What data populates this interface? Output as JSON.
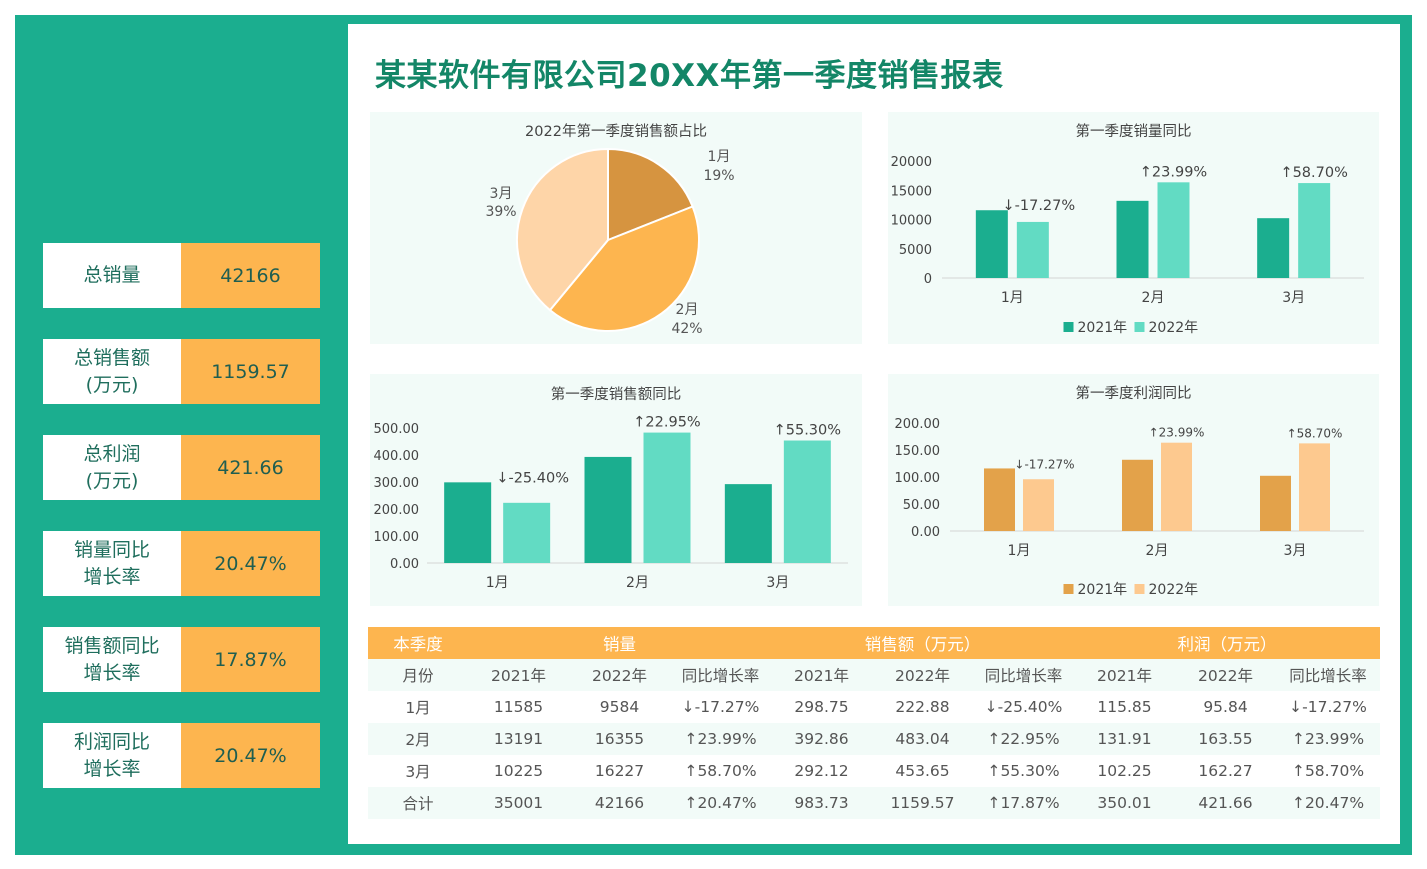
{
  "title": "某某软件有限公司20XX年第一季度销售报表",
  "kpis": [
    {
      "label": "总销量",
      "value": "42166"
    },
    {
      "label": "总销售额\n(万元)",
      "value": "1159.57"
    },
    {
      "label": "总利润\n(万元)",
      "value": "421.66"
    },
    {
      "label": "销量同比\n增长率",
      "value": "20.47%"
    },
    {
      "label": "销售额同比\n增长率",
      "value": "17.87%"
    },
    {
      "label": "利润同比\n增长率",
      "value": "20.47%"
    }
  ],
  "colors": {
    "accent": "#1bae8f",
    "orange": "#fdb54f",
    "bar2021": "#1bae8f",
    "bar2022": "#62dbc3",
    "profit2021": "#e3a24a",
    "profit2022": "#fdc98f",
    "up": "#17943c",
    "down": "#e0241b"
  },
  "chart_data": [
    {
      "type": "pie",
      "title": "2022年第一季度销售额占比",
      "categories": [
        "1月",
        "2月",
        "3月"
      ],
      "values": [
        19,
        42,
        39
      ],
      "labels": [
        "19%",
        "42%",
        "39%"
      ],
      "colors": [
        "#d69440",
        "#fdb54f",
        "#fed5a8"
      ]
    },
    {
      "type": "bar",
      "title": "第一季度销量同比",
      "categories": [
        "1月",
        "2月",
        "3月"
      ],
      "series": [
        {
          "name": "2021年",
          "values": [
            11585,
            13191,
            10225
          ]
        },
        {
          "name": "2022年",
          "values": [
            9584,
            16355,
            16227
          ]
        }
      ],
      "annotations": [
        "↓-17.27%",
        "↑23.99%",
        "↑58.70%"
      ],
      "yticks": [
        "0",
        "5000",
        "10000",
        "15000",
        "20000"
      ],
      "ylim": [
        0,
        20000
      ],
      "legend": "bottom",
      "colors": [
        "#1bae8f",
        "#62dbc3"
      ]
    },
    {
      "type": "bar",
      "title": "第一季度销售额同比",
      "categories": [
        "1月",
        "2月",
        "3月"
      ],
      "series": [
        {
          "name": "2021年",
          "values": [
            298.75,
            392.86,
            292.12
          ]
        },
        {
          "name": "2022年",
          "values": [
            222.88,
            483.04,
            453.65
          ]
        }
      ],
      "annotations": [
        "↓-25.40%",
        "↑22.95%",
        "↑55.30%"
      ],
      "yticks": [
        "0.00",
        "100.00",
        "200.00",
        "300.00",
        "400.00",
        "500.00"
      ],
      "ylim": [
        0,
        500
      ],
      "legend": "bottom",
      "colors": [
        "#1bae8f",
        "#62dbc3"
      ]
    },
    {
      "type": "bar",
      "title": "第一季度利润同比",
      "categories": [
        "1月",
        "2月",
        "3月"
      ],
      "series": [
        {
          "name": "2021年",
          "values": [
            115.85,
            131.91,
            102.25
          ]
        },
        {
          "name": "2022年",
          "values": [
            95.84,
            163.55,
            162.27
          ]
        }
      ],
      "annotations": [
        "↓-17.27%",
        "↑23.99%",
        "↑58.70%"
      ],
      "yticks": [
        "0.00",
        "50.00",
        "100.00",
        "150.00",
        "200.00"
      ],
      "ylim": [
        0,
        200
      ],
      "legend": "bottom",
      "colors": [
        "#e3a24a",
        "#fdc98f"
      ]
    }
  ],
  "table": {
    "groups": [
      "本季度",
      "销量",
      "销售额（万元）",
      "利润（万元）"
    ],
    "headers": [
      "月份",
      "2021年",
      "2022年",
      "同比增长率",
      "2021年",
      "2022年",
      "同比增长率",
      "2021年",
      "2022年",
      "同比增长率"
    ],
    "rows": [
      [
        "1月",
        "11585",
        "9584",
        "↓-17.27%",
        "298.75",
        "222.88",
        "↓-25.40%",
        "115.85",
        "95.84",
        "↓-17.27%"
      ],
      [
        "2月",
        "13191",
        "16355",
        "↑23.99%",
        "392.86",
        "483.04",
        "↑22.95%",
        "131.91",
        "163.55",
        "↑23.99%"
      ],
      [
        "3月",
        "10225",
        "16227",
        "↑58.70%",
        "292.12",
        "453.65",
        "↑55.30%",
        "102.25",
        "162.27",
        "↑58.70%"
      ],
      [
        "合计",
        "35001",
        "42166",
        "↑20.47%",
        "983.73",
        "1159.57",
        "↑17.87%",
        "350.01",
        "421.66",
        "↑20.47%"
      ]
    ]
  }
}
